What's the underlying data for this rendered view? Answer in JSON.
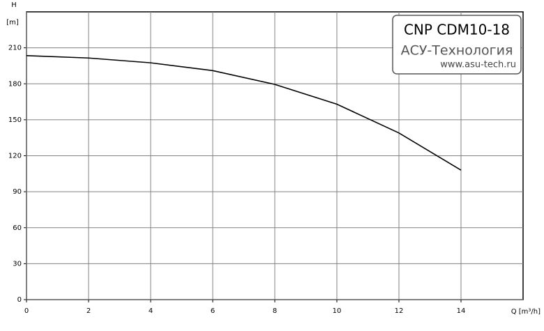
{
  "chart_data": {
    "type": "line",
    "title": "CNP CDM10-18",
    "company": "АСУ-Технология",
    "url": "www.asu-tech.ru",
    "y_label": "H",
    "y_unit": "[m]",
    "x_label": "Q [m³/h]",
    "x": [
      0,
      2,
      4,
      6,
      8,
      10,
      12,
      14
    ],
    "series": [
      {
        "name": "H",
        "color": "#000000",
        "values": [
          203.5,
          201.5,
          197.5,
          191,
          179.5,
          163,
          139,
          108
        ]
      }
    ],
    "xlim": [
      0,
      16
    ],
    "xticks": [
      0,
      2,
      4,
      6,
      8,
      10,
      12,
      14
    ],
    "ylim": [
      0,
      240
    ],
    "yticks": [
      0,
      30,
      60,
      90,
      120,
      150,
      180,
      210
    ],
    "grid": true
  }
}
